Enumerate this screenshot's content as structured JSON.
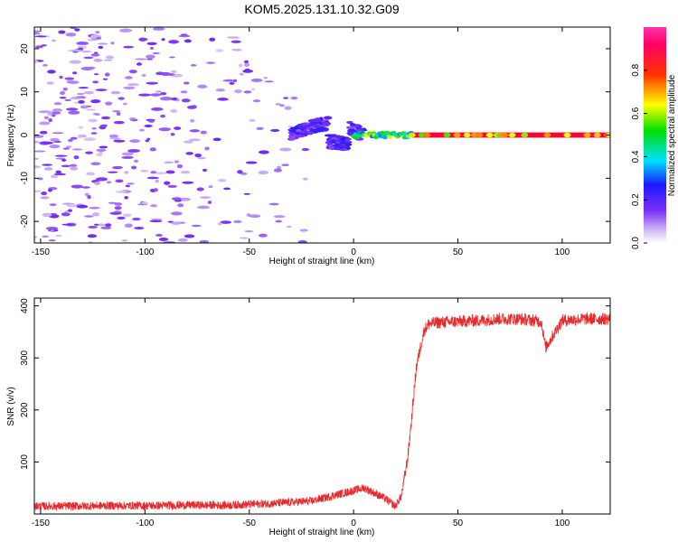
{
  "title": "KOM5.2025.131.10.32.G09",
  "colors": {
    "series": "#e8282a",
    "axis": "#000000",
    "background": "#ffffff"
  },
  "chart_data": [
    {
      "type": "heatmap",
      "xlabel": "Height of straight line (km)",
      "ylabel": "Frequency (Hz)",
      "xlim": [
        -153,
        123
      ],
      "ylim": [
        -25,
        25
      ],
      "x_ticks": [
        -150,
        -100,
        -50,
        0,
        50,
        100
      ],
      "y_ticks": [
        -20,
        -10,
        0,
        10,
        20
      ],
      "colorbar": {
        "label": "Normalized spectral amplitude",
        "range": [
          0,
          1
        ],
        "ticks": [
          "0.0",
          "0.2",
          "0.4",
          "0.6",
          "0.8"
        ],
        "colormap": "rainbow (purple-blue-cyan-green-yellow-red-magenta)"
      },
      "features": {
        "noise_region_x": [
          -153,
          -30
        ],
        "dispersed_signal_x": [
          -30,
          5
        ],
        "signal_peak_frequency_hz": 0,
        "strong_line_x": [
          28,
          123
        ]
      }
    },
    {
      "type": "line",
      "xlabel": "Height of straight line (km)",
      "ylabel": "SNR (v/v)",
      "xlim": [
        -153,
        123
      ],
      "ylim": [
        0,
        415
      ],
      "x_ticks": [
        -150,
        -100,
        -50,
        0,
        50,
        100
      ],
      "y_ticks": [
        100,
        200,
        300,
        400
      ],
      "x": [
        -153,
        -140,
        -120,
        -100,
        -80,
        -60,
        -40,
        -20,
        -10,
        0,
        5,
        10,
        15,
        20,
        23,
        26,
        28,
        30,
        32,
        34,
        36,
        40,
        50,
        60,
        70,
        80,
        90,
        92,
        100,
        110,
        123
      ],
      "y": [
        15,
        15,
        16,
        16,
        17,
        17,
        20,
        25,
        35,
        45,
        50,
        40,
        30,
        15,
        35,
        110,
        190,
        280,
        320,
        355,
        365,
        368,
        370,
        372,
        375,
        375,
        370,
        320,
        372,
        375,
        375
      ]
    }
  ]
}
